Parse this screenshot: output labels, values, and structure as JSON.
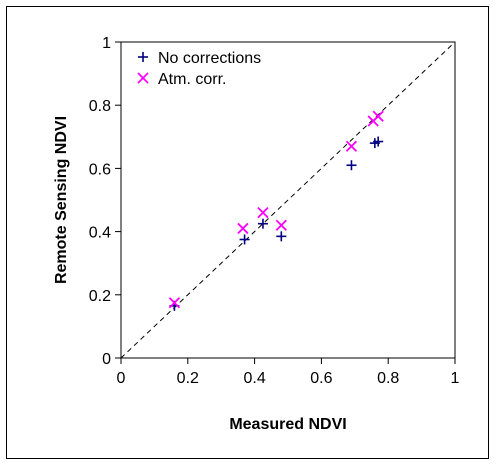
{
  "chart_data": {
    "type": "scatter",
    "title": "",
    "xlabel": "Measured NDVI",
    "ylabel": "Remote Sensing NDVI",
    "xlim": [
      0,
      1
    ],
    "ylim": [
      0,
      1
    ],
    "x_ticks": [
      "0",
      "0.2",
      "0.4",
      "0.6",
      "0.8",
      "1"
    ],
    "y_ticks": [
      "0",
      "0.2",
      "0.4",
      "0.6",
      "0.8",
      "1"
    ],
    "grid": false,
    "legend_position": "top-left",
    "reference_line": "1:1 dashed",
    "series": [
      {
        "name": "No corrections",
        "marker": "plus",
        "color": "#000080",
        "points": [
          {
            "x": 0.16,
            "y": 0.165
          },
          {
            "x": 0.37,
            "y": 0.375
          },
          {
            "x": 0.425,
            "y": 0.425
          },
          {
            "x": 0.48,
            "y": 0.385
          },
          {
            "x": 0.69,
            "y": 0.61
          },
          {
            "x": 0.76,
            "y": 0.68
          },
          {
            "x": 0.77,
            "y": 0.685
          }
        ]
      },
      {
        "name": "Atm. corr.",
        "marker": "x",
        "color": "#ff00ff",
        "points": [
          {
            "x": 0.16,
            "y": 0.175
          },
          {
            "x": 0.365,
            "y": 0.41
          },
          {
            "x": 0.425,
            "y": 0.46
          },
          {
            "x": 0.48,
            "y": 0.42
          },
          {
            "x": 0.69,
            "y": 0.67
          },
          {
            "x": 0.755,
            "y": 0.75
          },
          {
            "x": 0.77,
            "y": 0.765
          }
        ]
      }
    ]
  }
}
